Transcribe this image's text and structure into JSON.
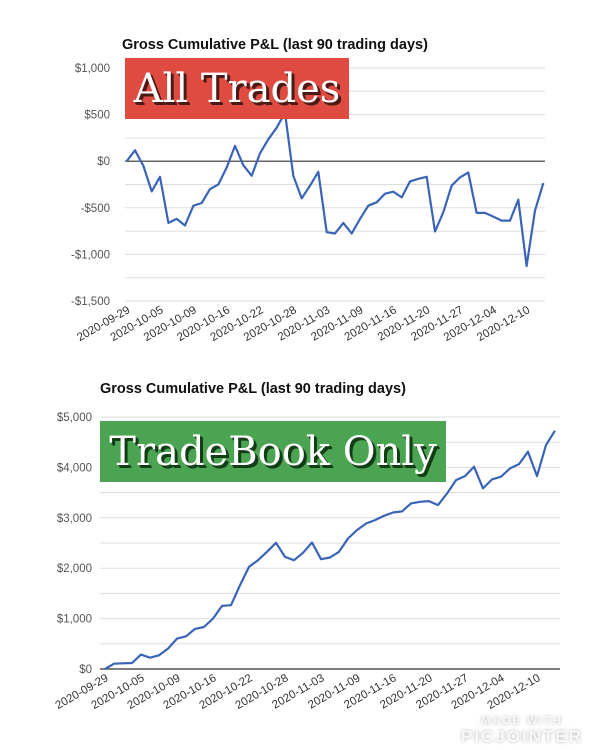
{
  "chart_data": [
    {
      "type": "line",
      "title": "Gross Cumulative P&L (last 90 trading days)",
      "annotation": "All Trades",
      "annotation_color": "#df4a41",
      "line_color": "#3a64b8",
      "ylim": [
        -1500,
        1000
      ],
      "yticks": [
        1000,
        500,
        0,
        -500,
        -1000,
        -1500
      ],
      "ytick_labels": [
        "$1,000",
        "$500",
        "$0",
        "-$500",
        "-$1,000",
        "-$1,500"
      ],
      "grid": true,
      "xtick_labels": [
        "2020-09-29",
        "2020-10-05",
        "2020-10-09",
        "2020-10-16",
        "2020-10-22",
        "2020-10-28",
        "2020-11-03",
        "2020-11-09",
        "2020-11-16",
        "2020-11-20",
        "2020-11-27",
        "2020-12-04",
        "2020-12-10"
      ],
      "values": [
        0,
        117,
        -50,
        -324,
        -167,
        -662,
        -619,
        -690,
        -477,
        -448,
        -299,
        -249,
        -68,
        164,
        -43,
        -157,
        85,
        235,
        359,
        520,
        -157,
        -399,
        -263,
        -114,
        -762,
        -776,
        -662,
        -776,
        -619,
        -477,
        -441,
        -349,
        -327,
        -388,
        -217,
        -189,
        -167,
        -754,
        -548,
        -263,
        -174,
        -121,
        -555,
        -555,
        -594,
        -637,
        -637,
        -413,
        -1125,
        -530,
        -235
      ]
    },
    {
      "type": "line",
      "title": "Gross Cumulative P&L (last 90 trading days)",
      "annotation": "TradeBook Only",
      "annotation_color": "#4ba451",
      "line_color": "#3a64b8",
      "ylim": [
        0,
        5000
      ],
      "yticks": [
        5000,
        4000,
        3000,
        2000,
        1000,
        0
      ],
      "ytick_labels": [
        "$5,000",
        "$4,000",
        "$3,000",
        "$2,000",
        "$1,000",
        "$0"
      ],
      "grid": true,
      "xtick_labels": [
        "2020-09-29",
        "2020-10-05",
        "2020-10-09",
        "2020-10-16",
        "2020-10-22",
        "2020-10-28",
        "2020-11-03",
        "2020-11-09",
        "2020-11-16",
        "2020-11-20",
        "2020-11-27",
        "2020-12-04",
        "2020-12-10"
      ],
      "values": [
        0,
        106,
        113,
        119,
        285,
        225,
        272,
        404,
        603,
        649,
        795,
        834,
        1000,
        1252,
        1265,
        1662,
        2026,
        2159,
        2325,
        2503,
        2225,
        2159,
        2305,
        2510,
        2179,
        2212,
        2325,
        2589,
        2755,
        2887,
        2954,
        3040,
        3106,
        3126,
        3285,
        3318,
        3331,
        3252,
        3483,
        3748,
        3828,
        4013,
        3583,
        3762,
        3815,
        3980,
        4066,
        4311,
        3828,
        4444,
        4728
      ]
    }
  ],
  "watermark": {
    "line1": "MADE WITH",
    "line2": "PICJOINTER"
  }
}
